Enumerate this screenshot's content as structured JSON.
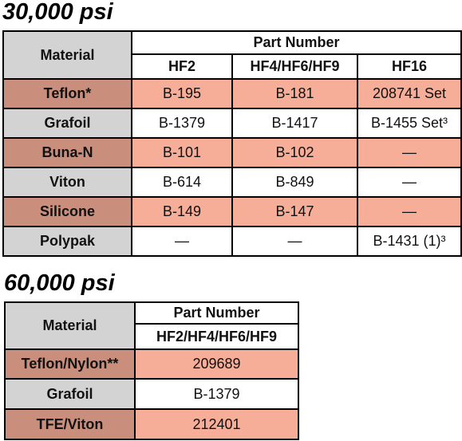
{
  "sections": [
    {
      "title": "30,000 psi",
      "header": {
        "material": "Material",
        "group": "Part Number",
        "columns": [
          "HF2",
          "HF4/HF6/HF9",
          "HF16"
        ]
      },
      "rows": [
        {
          "material": "Teflon*",
          "cells": [
            "B-195",
            "B-181",
            "208741 Set"
          ]
        },
        {
          "material": "Grafoil",
          "cells": [
            "B-1379",
            "B-1417",
            "B-1455 Set³"
          ]
        },
        {
          "material": "Buna-N",
          "cells": [
            "B-101",
            "B-102",
            "—"
          ]
        },
        {
          "material": "Viton",
          "cells": [
            "B-614",
            "B-849",
            "—"
          ]
        },
        {
          "material": "Silicone",
          "cells": [
            "B-149",
            "B-147",
            "—"
          ]
        },
        {
          "material": "Polypak",
          "cells": [
            "—",
            "—",
            "B-1431 (1)³"
          ]
        }
      ]
    },
    {
      "title": "60,000 psi",
      "header": {
        "material": "Material",
        "group": "Part Number",
        "columns": [
          "HF2/HF4/HF6/HF9"
        ]
      },
      "rows": [
        {
          "material": "Teflon/Nylon**",
          "cells": [
            "209689"
          ]
        },
        {
          "material": "Grafoil",
          "cells": [
            "B-1379"
          ]
        },
        {
          "material": "TFE/Viton",
          "cells": [
            "212401"
          ]
        }
      ]
    }
  ]
}
